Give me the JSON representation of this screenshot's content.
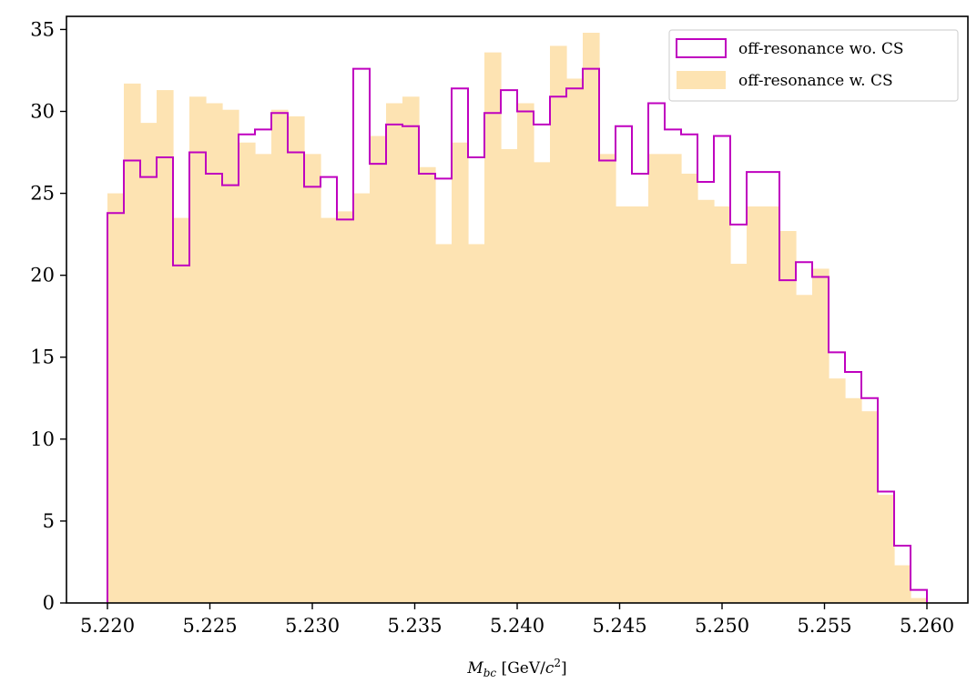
{
  "chart_data": {
    "type": "bar",
    "title": "",
    "xlabel_parts": {
      "symbol": "M",
      "subscript": "bc",
      "unit_open": " [GeV/",
      "unit_var": "c",
      "unit_exp": "2",
      "unit_close": "]"
    },
    "ylabel": "",
    "xlim": [
      5.218,
      5.262
    ],
    "ylim": [
      0,
      35.8
    ],
    "xticks": [
      5.22,
      5.225,
      5.23,
      5.235,
      5.24,
      5.245,
      5.25,
      5.255,
      5.26
    ],
    "xtick_labels": [
      "5.220",
      "5.225",
      "5.230",
      "5.235",
      "5.240",
      "5.245",
      "5.250",
      "5.255",
      "5.260"
    ],
    "yticks": [
      0,
      5,
      10,
      15,
      20,
      25,
      30,
      35
    ],
    "ytick_labels": [
      "0",
      "5",
      "10",
      "15",
      "20",
      "25",
      "30",
      "35"
    ],
    "grid": false,
    "legend_placement": "top-right",
    "bin_start": 5.22,
    "bin_width": 0.0008,
    "series": [
      {
        "name": "off-resonance wo. CS",
        "style": "step",
        "color": "#bf00bf",
        "values": [
          23.8,
          27.0,
          26.0,
          27.2,
          20.6,
          27.5,
          26.2,
          25.5,
          28.6,
          28.9,
          29.9,
          27.5,
          25.4,
          26.0,
          23.4,
          32.6,
          26.8,
          29.2,
          29.1,
          26.2,
          25.9,
          31.4,
          27.2,
          29.9,
          31.3,
          30.0,
          29.2,
          30.9,
          31.4,
          32.6,
          27.0,
          29.1,
          26.2,
          30.5,
          28.9,
          28.6,
          25.7,
          28.5,
          23.1,
          26.3,
          26.3,
          19.7,
          20.8,
          19.9,
          15.3,
          14.1,
          12.5,
          6.8,
          3.5,
          0.8
        ]
      },
      {
        "name": "off-resonance w. CS",
        "style": "filled",
        "color": "#fde3b2",
        "values": [
          25.0,
          31.7,
          29.3,
          31.3,
          23.5,
          30.9,
          30.5,
          30.1,
          28.1,
          27.4,
          30.1,
          29.7,
          27.4,
          23.5,
          23.9,
          25.0,
          28.5,
          30.5,
          30.9,
          26.6,
          21.9,
          28.1,
          21.9,
          33.6,
          27.7,
          30.5,
          26.9,
          34.0,
          32.0,
          34.8,
          27.4,
          24.2,
          24.2,
          27.4,
          27.4,
          26.2,
          24.6,
          24.2,
          20.7,
          24.2,
          24.2,
          22.7,
          18.8,
          20.4,
          13.7,
          12.5,
          11.7,
          6.6,
          2.3,
          0.3
        ]
      }
    ]
  }
}
